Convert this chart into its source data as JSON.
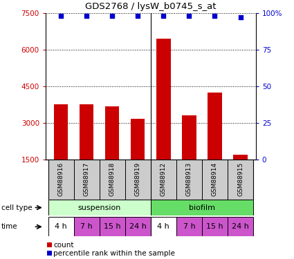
{
  "title": "GDS2768 / lysW_b0745_s_at",
  "samples": [
    "GSM88916",
    "GSM88917",
    "GSM88918",
    "GSM88919",
    "GSM88912",
    "GSM88913",
    "GSM88914",
    "GSM88915"
  ],
  "counts": [
    3750,
    3760,
    3680,
    3150,
    6450,
    3300,
    4250,
    1700
  ],
  "percentile_ranks": [
    98,
    98,
    98,
    98,
    98,
    98,
    98,
    97
  ],
  "ylim_left": [
    1500,
    7500
  ],
  "ylim_right": [
    0,
    100
  ],
  "yticks_left": [
    1500,
    3000,
    4500,
    6000,
    7500
  ],
  "yticks_right": [
    0,
    25,
    50,
    75,
    100
  ],
  "bar_color": "#cc0000",
  "dot_color": "#0000cc",
  "cell_type_labels": [
    "suspension",
    "biofilm"
  ],
  "cell_type_colors": [
    "#ccffcc",
    "#66dd66"
  ],
  "time_labels": [
    "4 h",
    "7 h",
    "15 h",
    "24 h",
    "4 h",
    "7 h",
    "15 h",
    "24 h"
  ],
  "time_bg_colors": [
    "#ffffff",
    "#cc55cc",
    "#cc55cc",
    "#cc55cc",
    "#ffffff",
    "#cc55cc",
    "#cc55cc",
    "#cc55cc"
  ],
  "sample_bg_color": "#cccccc",
  "legend_count_color": "#cc0000",
  "legend_pct_color": "#0000cc",
  "grid_color": "#000000",
  "separator_color": "#000000"
}
